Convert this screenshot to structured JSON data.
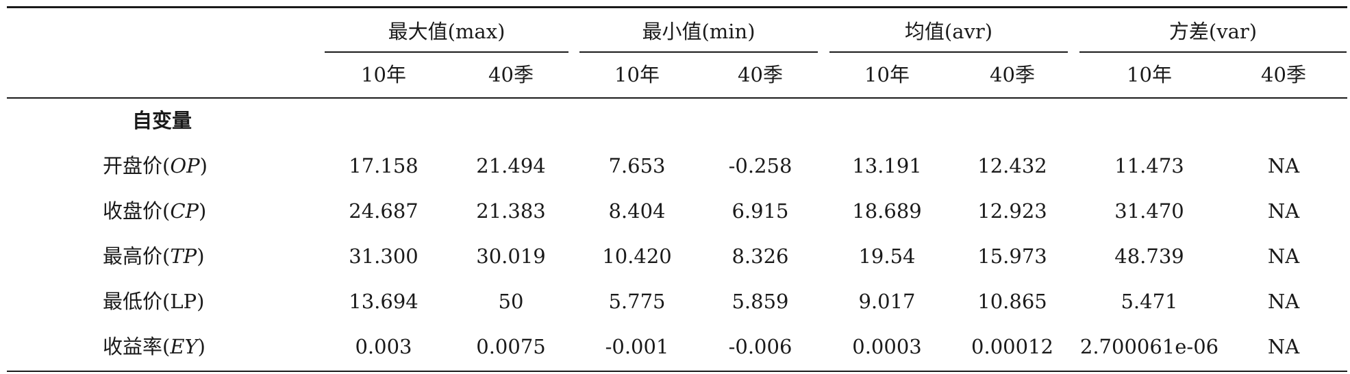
{
  "table": {
    "groups": [
      {
        "label": "最大值(max)"
      },
      {
        "label": "最小值(min)"
      },
      {
        "label": "均值(avr)"
      },
      {
        "label": "方差(var)"
      }
    ],
    "subheaders": [
      "10年",
      "40季",
      "10年",
      "40季",
      "10年",
      "40季",
      "10年",
      "40季"
    ],
    "section_label": "自变量",
    "rows": [
      {
        "label_prefix": "开盘价(",
        "label_var": "OP",
        "label_suffix": ")",
        "values": [
          "17.158",
          "21.494",
          "7.653",
          "-0.258",
          "13.191",
          "12.432",
          "11.473",
          "NA"
        ]
      },
      {
        "label_prefix": "收盘价(",
        "label_var": "CP",
        "label_suffix": ")",
        "values": [
          "24.687",
          "21.383",
          "8.404",
          "6.915",
          "18.689",
          "12.923",
          "31.470",
          "NA"
        ]
      },
      {
        "label_prefix": "最高价(",
        "label_var": "TP",
        "label_suffix": ")",
        "values": [
          "31.300",
          "30.019",
          "10.420",
          "8.326",
          "19.54",
          "15.973",
          "48.739",
          "NA"
        ]
      },
      {
        "label_prefix": "最低价(",
        "label_var": "LP",
        "label_suffix": ")",
        "values": [
          "13.694",
          "50",
          "5.775",
          "5.859",
          "9.017",
          "10.865",
          "5.471",
          "NA"
        ]
      },
      {
        "label_prefix": "收益率(",
        "label_var": "EY",
        "label_suffix": ")",
        "values": [
          "0.003",
          "0.0075",
          "-0.001",
          "-0.006",
          "0.0003",
          "0.00012",
          "2.700061e-06",
          "NA"
        ]
      }
    ]
  }
}
